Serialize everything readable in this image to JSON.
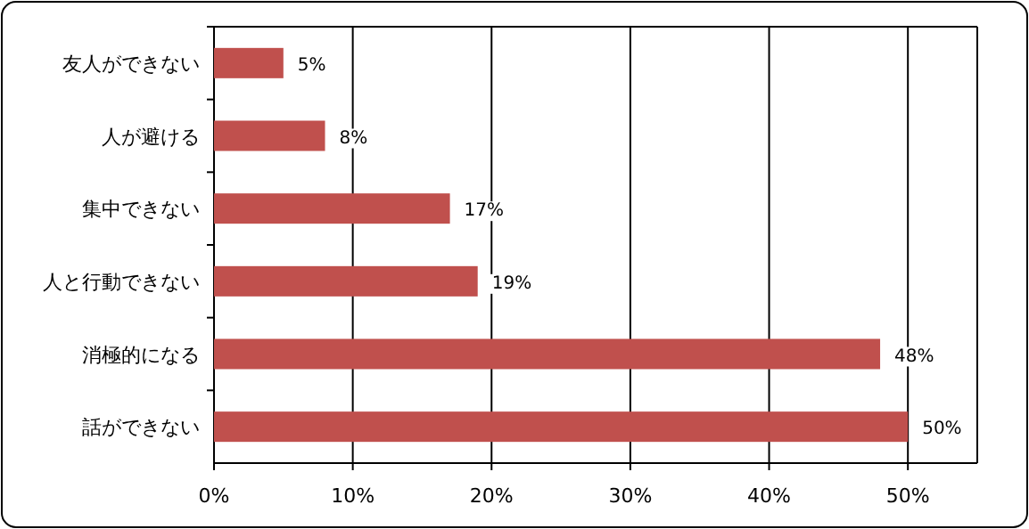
{
  "chart_data": {
    "type": "bar",
    "orientation": "horizontal",
    "categories": [
      "友人ができない",
      "人が避ける",
      "集中できない",
      "人と行動できない",
      "消極的になる",
      "話ができない"
    ],
    "values": [
      5,
      8,
      17,
      19,
      48,
      50
    ],
    "value_labels": [
      "5%",
      "8%",
      "17%",
      "19%",
      "48%",
      "50%"
    ],
    "color": "#c0504d",
    "xlim": [
      0,
      55
    ],
    "xticks": [
      {
        "value": 0,
        "label": "0%"
      },
      {
        "value": 10,
        "label": "10%"
      },
      {
        "value": 20,
        "label": "20%"
      },
      {
        "value": 30,
        "label": "30%"
      },
      {
        "value": 40,
        "label": "40%"
      },
      {
        "value": 50,
        "label": "50%"
      }
    ],
    "grid": "x"
  }
}
